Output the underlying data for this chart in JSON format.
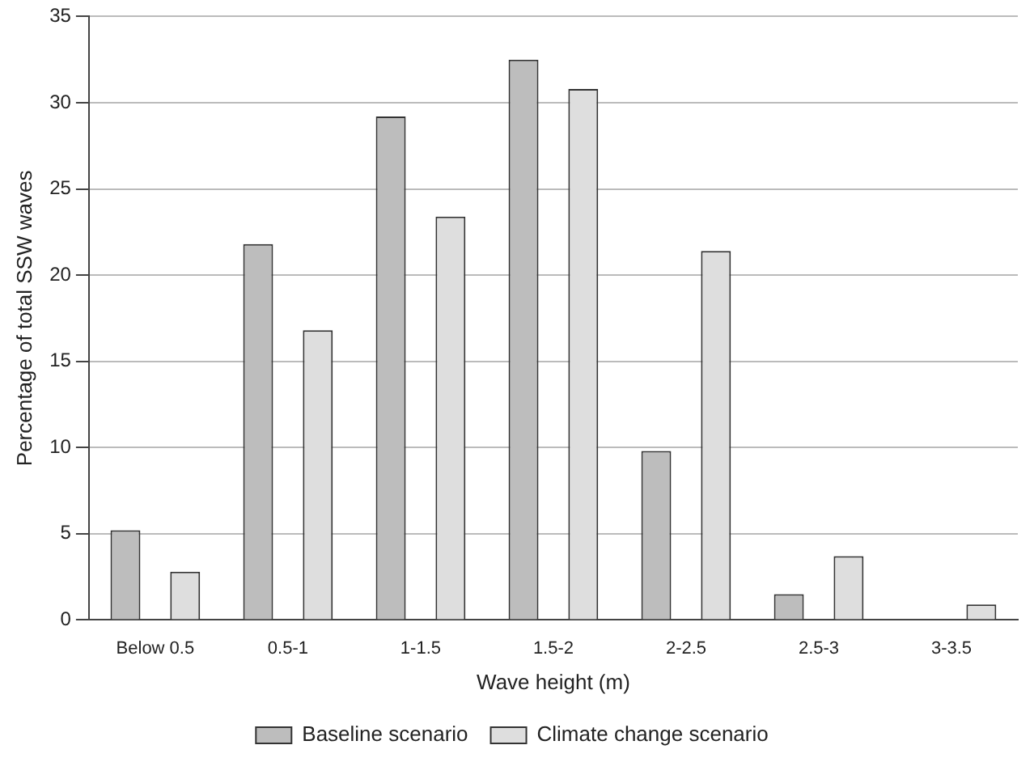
{
  "chart_data": {
    "type": "bar",
    "xlabel": "Wave height (m)",
    "ylabel": "Percentage of total SSW waves",
    "categories": [
      "Below 0.5",
      "0.5-1",
      "1-1.5",
      "1.5-2",
      "2-2.5",
      "2.5-3",
      "3-3.5"
    ],
    "series": [
      {
        "name": "Baseline scenario",
        "color": "#bdbdbd",
        "values": [
          5.2,
          21.8,
          29.2,
          32.5,
          9.8,
          1.5,
          0
        ]
      },
      {
        "name": "Climate change scenario",
        "color": "#dedede",
        "values": [
          2.8,
          16.8,
          23.4,
          30.8,
          21.4,
          3.7,
          0.9
        ]
      }
    ],
    "ylim": [
      0,
      35
    ],
    "yticks": [
      0,
      5,
      10,
      15,
      20,
      25,
      30,
      35
    ],
    "grid": "y",
    "legend": "bottom"
  }
}
